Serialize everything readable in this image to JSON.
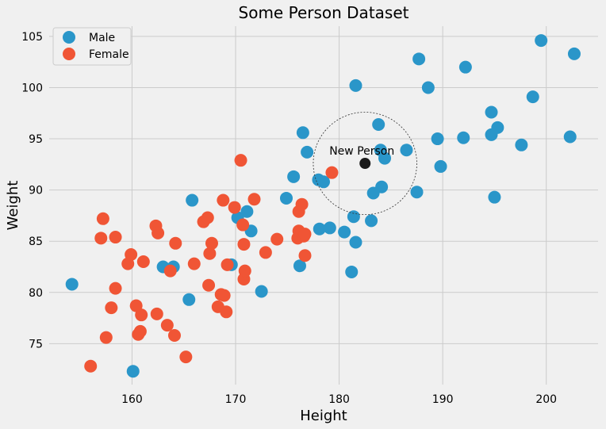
{
  "chart_data": {
    "type": "scatter",
    "title": "Some Person Dataset",
    "xlabel": "Height",
    "ylabel": "Weight",
    "xlim": [
      152,
      205
    ],
    "ylim": [
      71,
      106
    ],
    "xticks": [
      160,
      170,
      180,
      190,
      200
    ],
    "yticks": [
      75,
      80,
      85,
      90,
      95,
      100,
      105
    ],
    "grid": true,
    "legend_position": "top-left",
    "series": [
      {
        "name": "Male",
        "color": "#2a96c9",
        "points": [
          [
            154.2,
            80.8
          ],
          [
            160.1,
            72.3
          ],
          [
            163.0,
            82.5
          ],
          [
            164.0,
            82.5
          ],
          [
            165.5,
            79.3
          ],
          [
            165.8,
            89.0
          ],
          [
            169.6,
            82.7
          ],
          [
            170.2,
            87.3
          ],
          [
            171.1,
            87.9
          ],
          [
            171.5,
            86.0
          ],
          [
            172.5,
            80.1
          ],
          [
            174.9,
            89.2
          ],
          [
            175.6,
            91.3
          ],
          [
            176.2,
            82.6
          ],
          [
            176.5,
            95.6
          ],
          [
            176.9,
            93.7
          ],
          [
            178.0,
            91.0
          ],
          [
            178.1,
            86.2
          ],
          [
            178.5,
            90.8
          ],
          [
            179.1,
            86.3
          ],
          [
            180.5,
            85.9
          ],
          [
            181.2,
            82.0
          ],
          [
            181.4,
            87.4
          ],
          [
            181.6,
            84.9
          ],
          [
            181.6,
            100.2
          ],
          [
            183.1,
            87.0
          ],
          [
            183.3,
            89.7
          ],
          [
            183.8,
            96.4
          ],
          [
            184.0,
            93.9
          ],
          [
            184.1,
            90.3
          ],
          [
            184.4,
            93.1
          ],
          [
            186.5,
            93.9
          ],
          [
            187.5,
            89.8
          ],
          [
            187.7,
            102.8
          ],
          [
            188.6,
            100.0
          ],
          [
            189.5,
            95.0
          ],
          [
            189.8,
            92.3
          ],
          [
            192.0,
            95.1
          ],
          [
            192.2,
            102.0
          ],
          [
            194.7,
            97.6
          ],
          [
            194.7,
            95.4
          ],
          [
            195.0,
            89.3
          ],
          [
            195.3,
            96.1
          ],
          [
            197.6,
            94.4
          ],
          [
            198.7,
            99.1
          ],
          [
            199.5,
            104.6
          ],
          [
            202.3,
            95.2
          ],
          [
            202.7,
            103.3
          ]
        ]
      },
      {
        "name": "Female",
        "color": "#f05535",
        "points": [
          [
            156.0,
            72.8
          ],
          [
            157.0,
            85.3
          ],
          [
            157.2,
            87.2
          ],
          [
            157.5,
            75.6
          ],
          [
            158.0,
            78.5
          ],
          [
            158.4,
            85.4
          ],
          [
            158.4,
            80.4
          ],
          [
            159.6,
            82.8
          ],
          [
            159.9,
            83.7
          ],
          [
            160.4,
            78.7
          ],
          [
            160.6,
            75.9
          ],
          [
            160.8,
            76.2
          ],
          [
            160.9,
            77.8
          ],
          [
            161.1,
            83.0
          ],
          [
            162.3,
            86.5
          ],
          [
            162.4,
            77.9
          ],
          [
            162.5,
            85.8
          ],
          [
            163.4,
            76.8
          ],
          [
            163.7,
            82.1
          ],
          [
            164.1,
            75.8
          ],
          [
            164.2,
            84.8
          ],
          [
            165.2,
            73.7
          ],
          [
            166.0,
            82.8
          ],
          [
            166.9,
            86.9
          ],
          [
            167.3,
            87.3
          ],
          [
            167.4,
            80.7
          ],
          [
            167.5,
            83.8
          ],
          [
            167.7,
            84.8
          ],
          [
            168.3,
            78.6
          ],
          [
            168.6,
            79.8
          ],
          [
            168.8,
            89.0
          ],
          [
            168.9,
            79.7
          ],
          [
            169.1,
            78.1
          ],
          [
            169.2,
            82.7
          ],
          [
            169.9,
            88.3
          ],
          [
            170.5,
            92.9
          ],
          [
            170.7,
            86.6
          ],
          [
            170.8,
            84.7
          ],
          [
            170.8,
            81.3
          ],
          [
            170.9,
            82.1
          ],
          [
            171.8,
            89.1
          ],
          [
            172.9,
            83.9
          ],
          [
            174.0,
            85.2
          ],
          [
            176.0,
            85.3
          ],
          [
            176.1,
            87.9
          ],
          [
            176.1,
            86.0
          ],
          [
            176.4,
            88.6
          ],
          [
            176.6,
            85.5
          ],
          [
            176.7,
            85.7
          ],
          [
            176.7,
            83.6
          ],
          [
            179.3,
            91.7
          ]
        ]
      }
    ],
    "highlight": {
      "label": "New Person",
      "x": 182.5,
      "y": 92.6,
      "radius": 5,
      "color": "#1a1a1a"
    }
  }
}
